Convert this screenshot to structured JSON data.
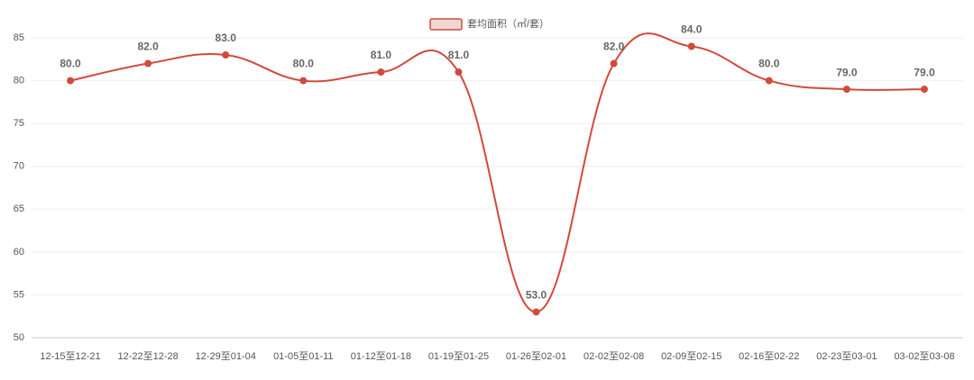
{
  "chart_data": {
    "type": "line",
    "categories": [
      "12-15至12-21",
      "12-22至12-28",
      "12-29至01-04",
      "01-05至01-11",
      "01-12至01-18",
      "01-19至01-25",
      "01-26至02-01",
      "02-02至02-08",
      "02-09至02-15",
      "02-16至02-22",
      "02-23至03-01",
      "03-02至03-08"
    ],
    "series": [
      {
        "name": "套均面积（㎡/套）",
        "color": "#d14a3c",
        "values": [
          80,
          82,
          83,
          80,
          81,
          81,
          53,
          82,
          84,
          80,
          79,
          79
        ],
        "value_labels": [
          "80.0",
          "82.0",
          "83.0",
          "80.0",
          "81.0",
          "81.0",
          "53.0",
          "82.0",
          "84.0",
          "80.0",
          "79.0",
          "79.0"
        ]
      }
    ],
    "ylim": [
      50,
      85
    ],
    "yticks": [
      50,
      55,
      60,
      65,
      70,
      75,
      80,
      85
    ],
    "grid": true,
    "smooth": true,
    "legend": "top"
  }
}
